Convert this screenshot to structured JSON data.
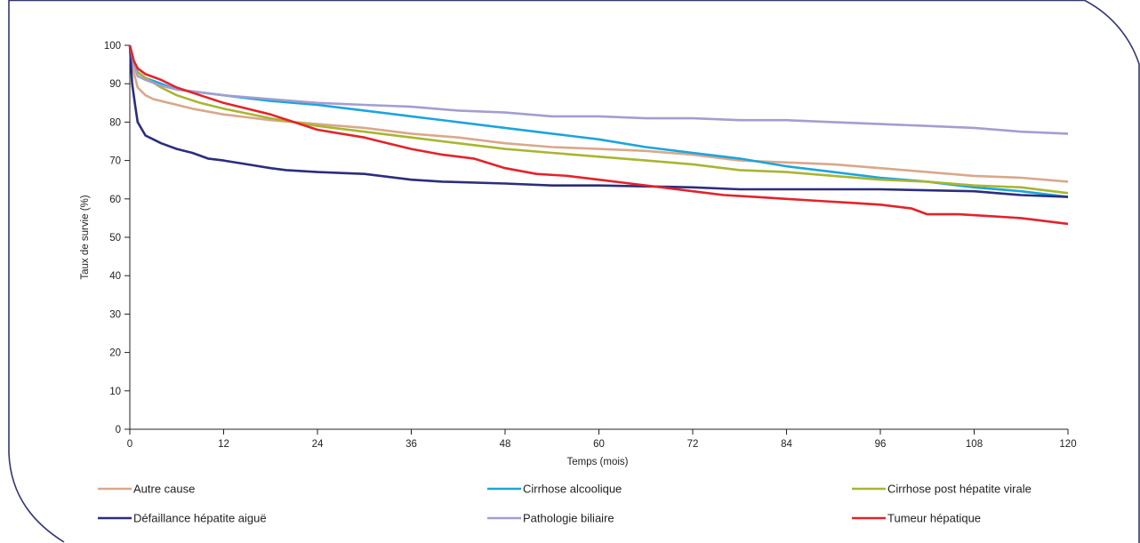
{
  "chart_data": {
    "type": "line",
    "title": "",
    "xlabel": "Temps (mois)",
    "ylabel": "Taux de survie (%)",
    "xlim": [
      0,
      120
    ],
    "ylim": [
      0,
      100
    ],
    "xticks": [
      0,
      12,
      24,
      36,
      48,
      60,
      72,
      84,
      96,
      108,
      120
    ],
    "yticks": [
      0,
      10,
      20,
      30,
      40,
      50,
      60,
      70,
      80,
      90,
      100
    ],
    "grid": false,
    "legend_position": "bottom",
    "series": [
      {
        "name": "Autre cause",
        "color": "#D9A88A",
        "points": [
          [
            0,
            100
          ],
          [
            0.5,
            93
          ],
          [
            1,
            89
          ],
          [
            2,
            87
          ],
          [
            3,
            86
          ],
          [
            5,
            85
          ],
          [
            8,
            83.5
          ],
          [
            12,
            82
          ],
          [
            18,
            80.5
          ],
          [
            24,
            79.5
          ],
          [
            30,
            78.5
          ],
          [
            36,
            77
          ],
          [
            42,
            76
          ],
          [
            48,
            74.5
          ],
          [
            54,
            73.5
          ],
          [
            60,
            73
          ],
          [
            66,
            72.5
          ],
          [
            72,
            71.5
          ],
          [
            78,
            70
          ],
          [
            84,
            69.5
          ],
          [
            90,
            69
          ],
          [
            96,
            68
          ],
          [
            102,
            67
          ],
          [
            108,
            66
          ],
          [
            114,
            65.5
          ],
          [
            120,
            64.5
          ]
        ]
      },
      {
        "name": "Cirrhose alcoolique",
        "color": "#1BA5DC",
        "points": [
          [
            0,
            100
          ],
          [
            0.5,
            96
          ],
          [
            1,
            93
          ],
          [
            2,
            91.5
          ],
          [
            4,
            90
          ],
          [
            6,
            88.5
          ],
          [
            12,
            87
          ],
          [
            18,
            85.5
          ],
          [
            24,
            84.5
          ],
          [
            30,
            83
          ],
          [
            36,
            81.5
          ],
          [
            42,
            80
          ],
          [
            48,
            78.5
          ],
          [
            54,
            77
          ],
          [
            60,
            75.5
          ],
          [
            66,
            73.5
          ],
          [
            72,
            72
          ],
          [
            78,
            70.5
          ],
          [
            84,
            68.5
          ],
          [
            90,
            67
          ],
          [
            96,
            65.5
          ],
          [
            102,
            64.5
          ],
          [
            108,
            63
          ],
          [
            114,
            62
          ],
          [
            120,
            60.5
          ]
        ]
      },
      {
        "name": "Cirrhose post hépatite virale",
        "color": "#A8B630",
        "points": [
          [
            0,
            100
          ],
          [
            0.5,
            95
          ],
          [
            1,
            93
          ],
          [
            2,
            91.5
          ],
          [
            4,
            89
          ],
          [
            6,
            87
          ],
          [
            9,
            85
          ],
          [
            12,
            83.5
          ],
          [
            18,
            81
          ],
          [
            24,
            79
          ],
          [
            30,
            77.5
          ],
          [
            36,
            76
          ],
          [
            42,
            74.5
          ],
          [
            48,
            73
          ],
          [
            54,
            72
          ],
          [
            60,
            71
          ],
          [
            66,
            70
          ],
          [
            72,
            69
          ],
          [
            78,
            67.5
          ],
          [
            84,
            67
          ],
          [
            90,
            66
          ],
          [
            96,
            65
          ],
          [
            102,
            64.5
          ],
          [
            108,
            63.5
          ],
          [
            114,
            63
          ],
          [
            120,
            61.5
          ]
        ]
      },
      {
        "name": "Défaillance hépatite aiguë",
        "color": "#2B2E7D",
        "points": [
          [
            0,
            100
          ],
          [
            0.3,
            90
          ],
          [
            0.7,
            84
          ],
          [
            1,
            80
          ],
          [
            2,
            76.5
          ],
          [
            3,
            75.5
          ],
          [
            4,
            74.5
          ],
          [
            6,
            73
          ],
          [
            8,
            72
          ],
          [
            10,
            70.5
          ],
          [
            12,
            70
          ],
          [
            15,
            69
          ],
          [
            18,
            68
          ],
          [
            20,
            67.5
          ],
          [
            24,
            67
          ],
          [
            30,
            66.5
          ],
          [
            36,
            65
          ],
          [
            40,
            64.5
          ],
          [
            48,
            64
          ],
          [
            54,
            63.5
          ],
          [
            60,
            63.5
          ],
          [
            72,
            63
          ],
          [
            78,
            62.5
          ],
          [
            84,
            62.5
          ],
          [
            96,
            62.5
          ],
          [
            108,
            62
          ],
          [
            114,
            61
          ],
          [
            120,
            60.5
          ]
        ]
      },
      {
        "name": "Pathologie biliaire",
        "color": "#A39ED0",
        "points": [
          [
            0,
            100
          ],
          [
            0.5,
            95
          ],
          [
            1,
            92
          ],
          [
            2,
            91
          ],
          [
            4,
            89.5
          ],
          [
            6,
            88.5
          ],
          [
            12,
            87
          ],
          [
            18,
            86
          ],
          [
            24,
            85
          ],
          [
            30,
            84.5
          ],
          [
            36,
            84
          ],
          [
            42,
            83
          ],
          [
            48,
            82.5
          ],
          [
            54,
            81.5
          ],
          [
            60,
            81.5
          ],
          [
            66,
            81
          ],
          [
            72,
            81
          ],
          [
            78,
            80.5
          ],
          [
            84,
            80.5
          ],
          [
            90,
            80
          ],
          [
            96,
            79.5
          ],
          [
            102,
            79
          ],
          [
            108,
            78.5
          ],
          [
            114,
            77.5
          ],
          [
            120,
            77
          ]
        ]
      },
      {
        "name": "Tumeur hépatique",
        "color": "#E3232B",
        "points": [
          [
            0,
            100
          ],
          [
            0.5,
            96
          ],
          [
            1,
            94
          ],
          [
            2,
            92.5
          ],
          [
            4,
            91
          ],
          [
            6,
            89
          ],
          [
            9,
            87
          ],
          [
            12,
            85
          ],
          [
            15,
            83.5
          ],
          [
            18,
            82
          ],
          [
            21,
            80
          ],
          [
            24,
            78
          ],
          [
            27,
            77
          ],
          [
            30,
            76
          ],
          [
            33,
            74.5
          ],
          [
            36,
            73
          ],
          [
            40,
            71.5
          ],
          [
            44,
            70.5
          ],
          [
            48,
            68
          ],
          [
            52,
            66.5
          ],
          [
            56,
            66
          ],
          [
            60,
            65
          ],
          [
            64,
            64
          ],
          [
            68,
            63
          ],
          [
            72,
            62
          ],
          [
            76,
            61
          ],
          [
            80,
            60.5
          ],
          [
            84,
            60
          ],
          [
            88,
            59.5
          ],
          [
            92,
            59
          ],
          [
            96,
            58.5
          ],
          [
            100,
            57.5
          ],
          [
            102,
            56
          ],
          [
            106,
            56
          ],
          [
            110,
            55.5
          ],
          [
            114,
            55
          ],
          [
            116,
            54.5
          ],
          [
            120,
            53.5
          ]
        ]
      }
    ]
  }
}
